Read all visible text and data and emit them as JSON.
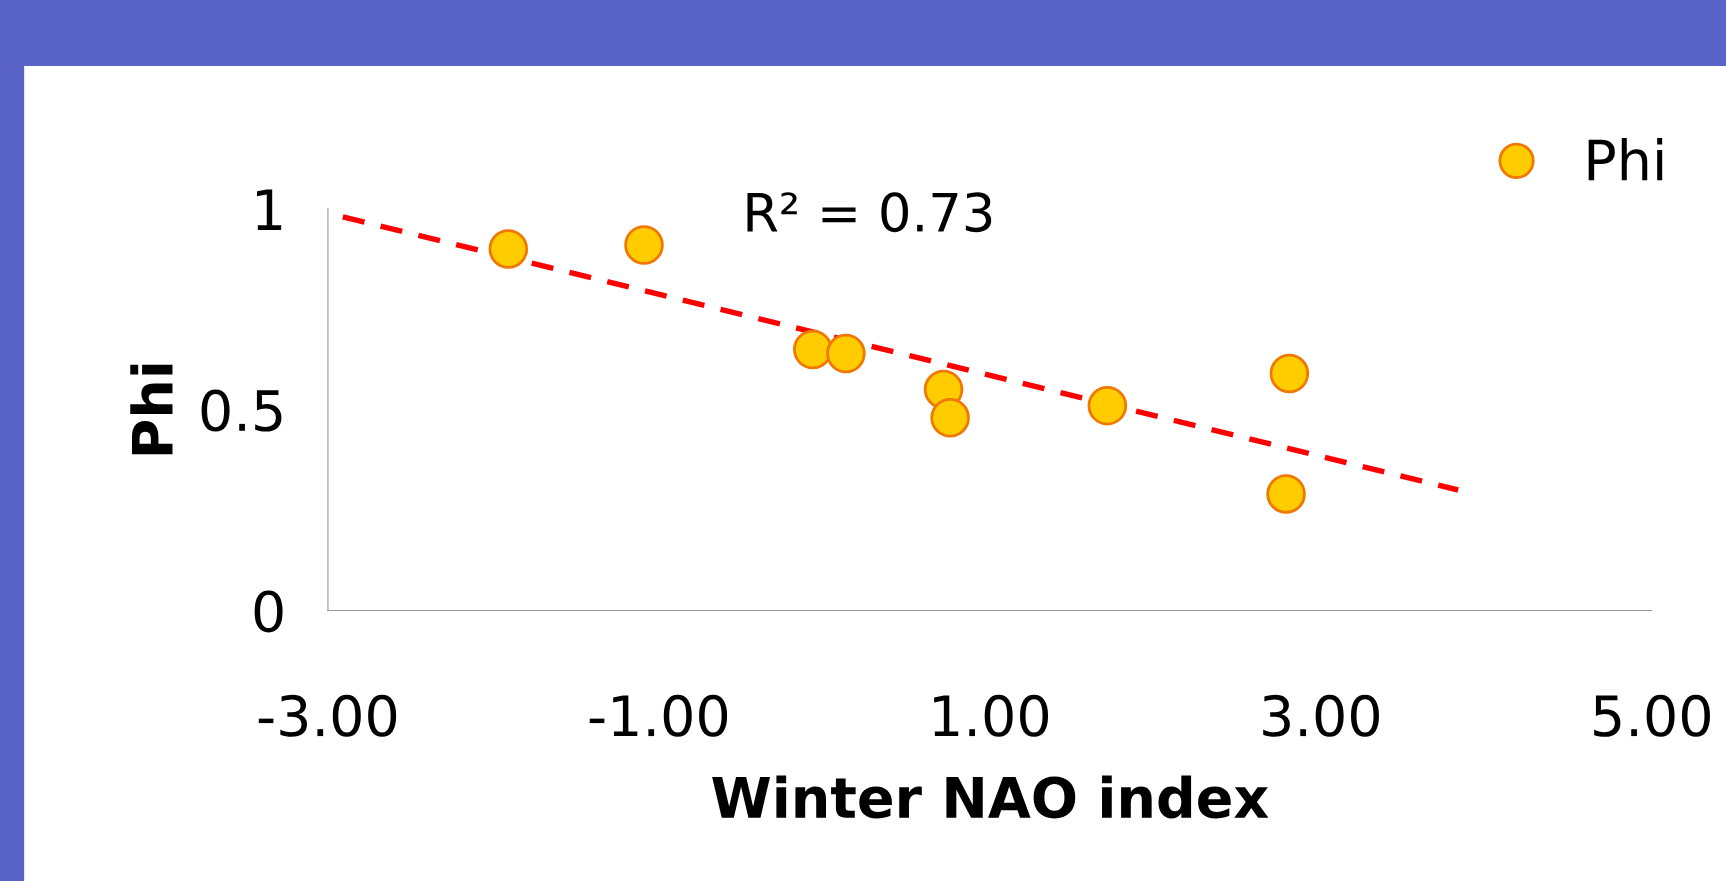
{
  "chart_data": {
    "type": "scatter",
    "xlabel": "Winter NAO index",
    "ylabel": "Phi",
    "x": [
      -1.91,
      -1.09,
      -0.07,
      0.13,
      0.72,
      0.76,
      1.71,
      2.81,
      2.79
    ],
    "series": [
      {
        "name": "Phi",
        "color": "#ffcc00",
        "values": [
          0.9,
          0.91,
          0.65,
          0.64,
          0.55,
          0.48,
          0.51,
          0.59,
          0.29
        ],
        "marker": "circle"
      },
      {
        "type": "line",
        "color": "#ff0000",
        "x": [
          -2.91,
          3.83
        ],
        "values": [
          0.98,
          0.3
        ],
        "line_style": "dashed",
        "marker": "none"
      }
    ],
    "annotations": [
      "R² = 0.73"
    ],
    "xlim": [
      -3,
      5
    ],
    "ylim": [
      0,
      1
    ],
    "xticks": [
      {
        "value": -3,
        "label": "-3.00"
      },
      {
        "value": -1,
        "label": "-1.00"
      },
      {
        "value": 1,
        "label": "1.00"
      },
      {
        "value": 3,
        "label": "3.00"
      },
      {
        "value": 5,
        "label": "5.00"
      }
    ],
    "yticks": [
      0,
      0.5,
      1
    ],
    "legend": "top right",
    "grid": false
  }
}
